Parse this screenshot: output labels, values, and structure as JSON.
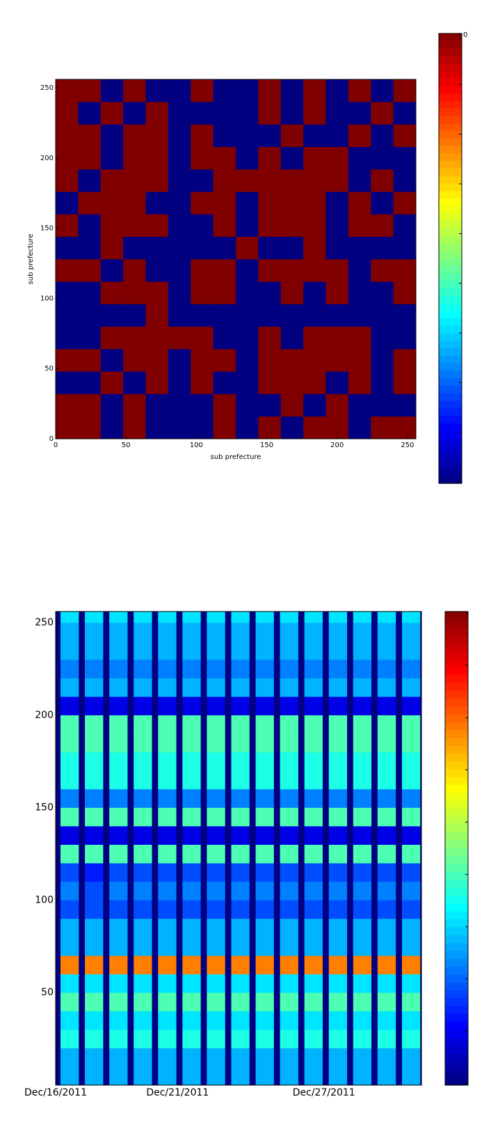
{
  "chart_data": [
    {
      "type": "heatmap",
      "xlabel": "sub prefecture",
      "ylabel": "sub prefecture",
      "xlim": [
        0,
        256
      ],
      "ylim": [
        0,
        256
      ],
      "xticks": [
        0,
        50,
        100,
        150,
        200,
        250
      ],
      "yticks": [
        0,
        50,
        100,
        150,
        200,
        250
      ],
      "colormap": "jet",
      "clim": [
        0,
        1
      ],
      "colorbar_label": "0",
      "z": [
        [
          1,
          1,
          0,
          1,
          0,
          0,
          0,
          1,
          0,
          1,
          0,
          1,
          1,
          0,
          1,
          1
        ],
        [
          1,
          1,
          0,
          1,
          0,
          0,
          0,
          1,
          0,
          0,
          1,
          0,
          1,
          0,
          0,
          0
        ],
        [
          0,
          0,
          1,
          0,
          1,
          0,
          1,
          0,
          0,
          1,
          1,
          1,
          0,
          1,
          0,
          1
        ],
        [
          1,
          1,
          0,
          1,
          1,
          0,
          1,
          1,
          0,
          1,
          1,
          1,
          1,
          1,
          0,
          1
        ],
        [
          0,
          0,
          1,
          1,
          1,
          1,
          1,
          0,
          0,
          1,
          0,
          1,
          1,
          1,
          0,
          0
        ],
        [
          0,
          0,
          0,
          0,
          1,
          0,
          0,
          0,
          0,
          0,
          0,
          0,
          0,
          0,
          0,
          0
        ],
        [
          0,
          0,
          1,
          1,
          1,
          0,
          1,
          1,
          0,
          0,
          1,
          0,
          1,
          0,
          0,
          1
        ],
        [
          1,
          1,
          0,
          1,
          0,
          0,
          1,
          1,
          0,
          1,
          1,
          1,
          1,
          0,
          1,
          1
        ],
        [
          0,
          0,
          1,
          0,
          0,
          0,
          0,
          0,
          1,
          0,
          0,
          1,
          0,
          0,
          0,
          0
        ],
        [
          1,
          0,
          1,
          1,
          1,
          0,
          0,
          1,
          0,
          1,
          1,
          1,
          0,
          1,
          1,
          0
        ],
        [
          0,
          1,
          1,
          1,
          0,
          0,
          1,
          1,
          0,
          1,
          1,
          1,
          0,
          1,
          0,
          1
        ],
        [
          1,
          0,
          1,
          1,
          1,
          0,
          0,
          1,
          1,
          1,
          1,
          1,
          1,
          0,
          1,
          0
        ],
        [
          1,
          1,
          0,
          1,
          1,
          0,
          1,
          1,
          0,
          1,
          0,
          1,
          1,
          0,
          0,
          0
        ],
        [
          1,
          1,
          0,
          1,
          1,
          0,
          1,
          0,
          0,
          0,
          1,
          0,
          0,
          1,
          0,
          1
        ],
        [
          1,
          0,
          1,
          0,
          1,
          0,
          0,
          0,
          0,
          1,
          0,
          1,
          0,
          0,
          1,
          0
        ],
        [
          1,
          1,
          0,
          1,
          0,
          0,
          1,
          0,
          0,
          1,
          0,
          1,
          0,
          1,
          0,
          1
        ]
      ]
    },
    {
      "type": "heatmap",
      "xlim": [
        0,
        15
      ],
      "ylim": [
        0,
        256
      ],
      "yticks": [
        50,
        100,
        150,
        200,
        250
      ],
      "xticks": [
        {
          "value": 0,
          "label": "Dec/16/2011"
        },
        {
          "value": 5,
          "label": "Dec/21/2011"
        },
        {
          "value": 11,
          "label": "Dec/27/2011"
        }
      ],
      "colormap": "jet",
      "clim": [
        0,
        1
      ],
      "x": [
        0,
        1,
        2,
        3,
        4,
        5,
        6,
        7,
        8,
        9,
        10,
        11,
        12,
        13,
        14
      ],
      "ybins": [
        0,
        10,
        20,
        30,
        40,
        50,
        60,
        70,
        80,
        90,
        100,
        110,
        120,
        130,
        140,
        150,
        160,
        170,
        180,
        190,
        200,
        210,
        220,
        230,
        240,
        250,
        256
      ],
      "z": [
        [
          0.3,
          0.3,
          0.3,
          0.3,
          0.3,
          0.3,
          0.3,
          0.3,
          0.3,
          0.3,
          0.3,
          0.3,
          0.3,
          0.3,
          0.3
        ],
        [
          0.3,
          0.3,
          0.3,
          0.3,
          0.3,
          0.3,
          0.3,
          0.3,
          0.3,
          0.3,
          0.3,
          0.3,
          0.3,
          0.3,
          0.3
        ],
        [
          0.4,
          0.4,
          0.4,
          0.4,
          0.4,
          0.4,
          0.4,
          0.4,
          0.4,
          0.4,
          0.4,
          0.4,
          0.4,
          0.4,
          0.4
        ],
        [
          0.35,
          0.35,
          0.35,
          0.35,
          0.35,
          0.35,
          0.35,
          0.35,
          0.35,
          0.35,
          0.35,
          0.35,
          0.35,
          0.35,
          0.35
        ],
        [
          0.45,
          0.45,
          0.45,
          0.45,
          0.45,
          0.45,
          0.45,
          0.45,
          0.45,
          0.45,
          0.45,
          0.45,
          0.45,
          0.45,
          0.45
        ],
        [
          0.35,
          0.35,
          0.35,
          0.35,
          0.35,
          0.35,
          0.35,
          0.35,
          0.35,
          0.35,
          0.35,
          0.35,
          0.35,
          0.35,
          0.35
        ],
        [
          0.75,
          0.75,
          0.75,
          0.75,
          0.75,
          0.75,
          0.75,
          0.75,
          0.75,
          0.75,
          0.75,
          0.75,
          0.75,
          0.75,
          0.75
        ],
        [
          0.3,
          0.3,
          0.3,
          0.3,
          0.3,
          0.3,
          0.3,
          0.3,
          0.3,
          0.3,
          0.3,
          0.3,
          0.3,
          0.3,
          0.3
        ],
        [
          0.3,
          0.3,
          0.3,
          0.3,
          0.3,
          0.3,
          0.3,
          0.3,
          0.3,
          0.3,
          0.3,
          0.3,
          0.3,
          0.3,
          0.3
        ],
        [
          0.2,
          0.2,
          0.2,
          0.2,
          0.2,
          0.2,
          0.2,
          0.2,
          0.2,
          0.2,
          0.2,
          0.2,
          0.2,
          0.2,
          0.2
        ],
        [
          0.25,
          0.2,
          0.25,
          0.25,
          0.25,
          0.25,
          0.25,
          0.25,
          0.25,
          0.25,
          0.25,
          0.25,
          0.25,
          0.25,
          0.25
        ],
        [
          0.2,
          0.15,
          0.2,
          0.2,
          0.2,
          0.2,
          0.2,
          0.2,
          0.2,
          0.2,
          0.2,
          0.2,
          0.2,
          0.2,
          0.2
        ],
        [
          0.45,
          0.45,
          0.45,
          0.45,
          0.45,
          0.45,
          0.45,
          0.45,
          0.45,
          0.45,
          0.45,
          0.45,
          0.45,
          0.45,
          0.45
        ],
        [
          0.1,
          0.1,
          0.1,
          0.1,
          0.1,
          0.1,
          0.1,
          0.1,
          0.1,
          0.1,
          0.1,
          0.1,
          0.1,
          0.1,
          0.1
        ],
        [
          0.45,
          0.45,
          0.45,
          0.45,
          0.45,
          0.45,
          0.45,
          0.45,
          0.45,
          0.45,
          0.45,
          0.45,
          0.45,
          0.45,
          0.45
        ],
        [
          0.25,
          0.25,
          0.25,
          0.25,
          0.25,
          0.25,
          0.25,
          0.25,
          0.25,
          0.25,
          0.25,
          0.25,
          0.25,
          0.25,
          0.25
        ],
        [
          0.4,
          0.4,
          0.4,
          0.4,
          0.4,
          0.4,
          0.4,
          0.4,
          0.4,
          0.4,
          0.4,
          0.4,
          0.4,
          0.4,
          0.4
        ],
        [
          0.4,
          0.4,
          0.4,
          0.4,
          0.4,
          0.4,
          0.4,
          0.4,
          0.4,
          0.4,
          0.4,
          0.4,
          0.4,
          0.4,
          0.4
        ],
        [
          0.45,
          0.45,
          0.45,
          0.45,
          0.45,
          0.45,
          0.45,
          0.45,
          0.45,
          0.45,
          0.45,
          0.45,
          0.45,
          0.45,
          0.45
        ],
        [
          0.45,
          0.45,
          0.45,
          0.45,
          0.45,
          0.45,
          0.45,
          0.45,
          0.45,
          0.45,
          0.45,
          0.45,
          0.45,
          0.45,
          0.45
        ],
        [
          0.1,
          0.1,
          0.1,
          0.1,
          0.1,
          0.1,
          0.1,
          0.1,
          0.1,
          0.1,
          0.1,
          0.1,
          0.1,
          0.1,
          0.1
        ],
        [
          0.3,
          0.3,
          0.3,
          0.3,
          0.3,
          0.3,
          0.3,
          0.3,
          0.3,
          0.3,
          0.3,
          0.3,
          0.3,
          0.3,
          0.3
        ],
        [
          0.25,
          0.25,
          0.25,
          0.25,
          0.25,
          0.25,
          0.25,
          0.25,
          0.25,
          0.25,
          0.25,
          0.25,
          0.25,
          0.25,
          0.25
        ],
        [
          0.3,
          0.3,
          0.3,
          0.3,
          0.3,
          0.3,
          0.3,
          0.3,
          0.3,
          0.3,
          0.3,
          0.3,
          0.3,
          0.3,
          0.3
        ],
        [
          0.3,
          0.3,
          0.3,
          0.3,
          0.3,
          0.3,
          0.3,
          0.3,
          0.3,
          0.3,
          0.3,
          0.3,
          0.3,
          0.3,
          0.3
        ],
        [
          0.35,
          0.35,
          0.35,
          0.35,
          0.35,
          0.35,
          0.35,
          0.35,
          0.35,
          0.35,
          0.35,
          0.35,
          0.35,
          0.35,
          0.35
        ]
      ]
    }
  ]
}
